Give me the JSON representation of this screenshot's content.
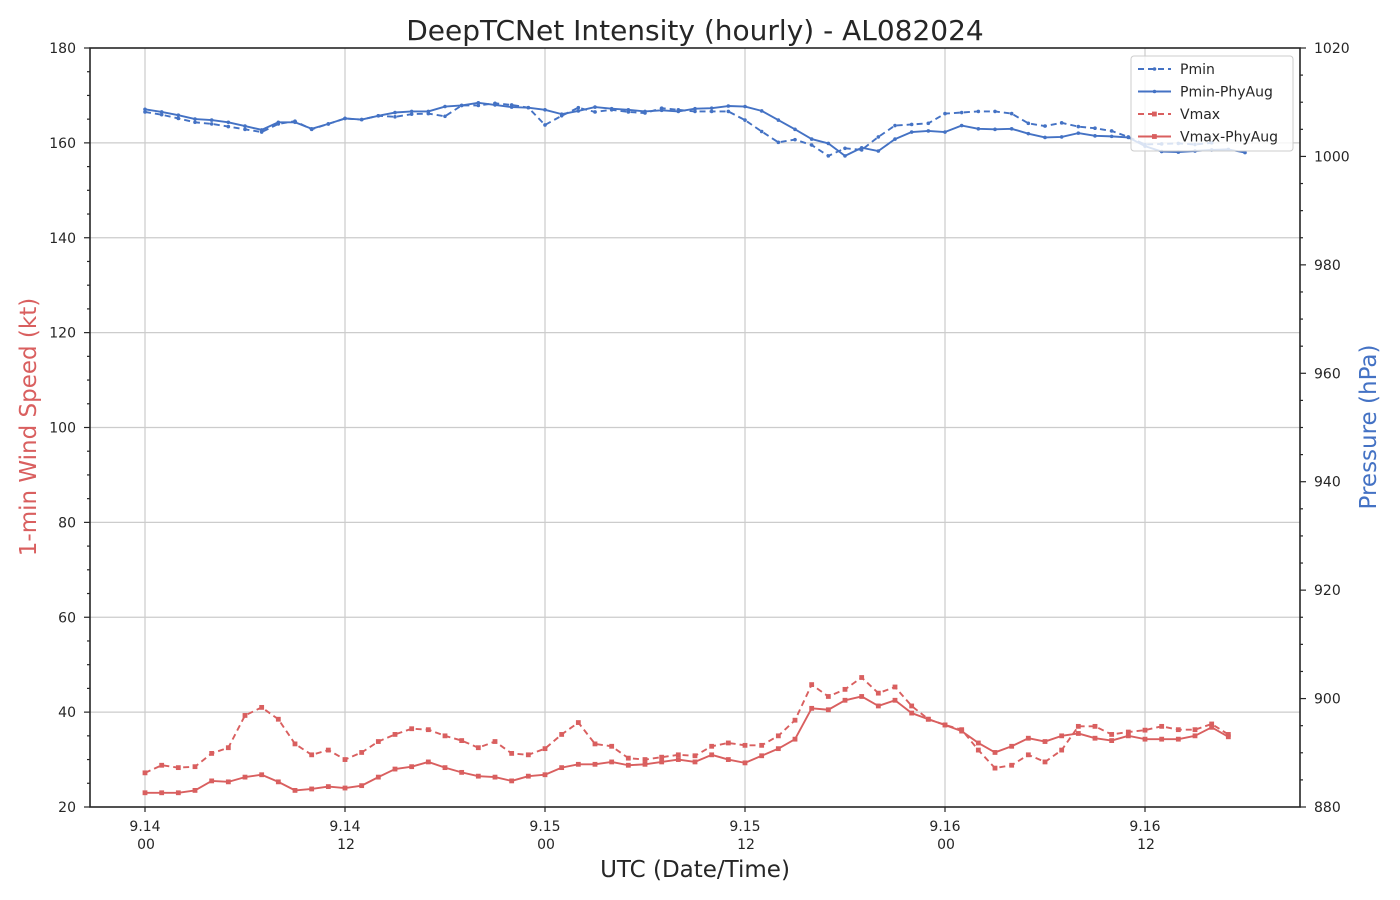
{
  "chart_data": {
    "type": "line",
    "title": "DeepTCNet Intensity (hourly) - AL082024",
    "xlabel": "UTC (Date/Time)",
    "ylabel_left": "1-min Wind Speed (kt)",
    "ylabel_right": "Pressure (hPa)",
    "ylim_left": [
      20,
      180
    ],
    "ylim_right": [
      880,
      1020
    ],
    "left_ticks": [
      20,
      40,
      60,
      80,
      100,
      120,
      140,
      160,
      180
    ],
    "right_ticks": [
      880,
      900,
      920,
      940,
      960,
      980,
      1000,
      1020
    ],
    "x_hours_range": [
      -3.3,
      69.3
    ],
    "x_ticks": [
      {
        "hour": 0,
        "date": "9.14",
        "time": "00"
      },
      {
        "hour": 12,
        "date": "9.14",
        "time": "12"
      },
      {
        "hour": 24,
        "date": "9.15",
        "time": "00"
      },
      {
        "hour": 36,
        "date": "9.15",
        "time": "12"
      },
      {
        "hour": 48,
        "date": "9.16",
        "time": "00"
      },
      {
        "hour": 60,
        "date": "9.16",
        "time": "12"
      }
    ],
    "grid": true,
    "legend_position": "top-right",
    "series": [
      {
        "name": "Pmin",
        "axis": "right",
        "color": "#4472c4",
        "dash": "6,4",
        "marker": "dot",
        "values": [
          1008.2,
          1007.7,
          1007,
          1006.3,
          1006,
          1005.5,
          1005,
          1004.5,
          1006,
          1006.5,
          1005,
          1006,
          1007,
          1006.8,
          1007.5,
          1007.3,
          1007.8,
          1007.9,
          1007.4,
          1009.4,
          1009.4,
          1009.8,
          1009.5,
          1009,
          1005.8,
          1007.5,
          1009,
          1008.2,
          1008.6,
          1008.2,
          1008,
          1008.9,
          1008.6,
          1008.3,
          1008.3,
          1008.3,
          1006.7,
          1004.6,
          1002.6,
          1003.1,
          1002.1,
          1000.1,
          1001.5,
          1001.2,
          1003.6,
          1005.7,
          1005.9,
          1006.1,
          1007.9,
          1008.1,
          1008.3,
          1008.3,
          1007.9,
          1006.1,
          1005.6,
          1006.2,
          1005.5,
          1005.2,
          1004.7,
          1003.6,
          1002.2,
          1002.3,
          1002.4,
          1002.2,
          1002.5
        ]
      },
      {
        "name": "Pmin-PhyAug",
        "axis": "right",
        "color": "#4472c4",
        "dash": "",
        "marker": "dot",
        "values": [
          1008.7,
          1008.2,
          1007.6,
          1006.9,
          1006.7,
          1006.3,
          1005.6,
          1004.9,
          1006.3,
          1006.3,
          1005.1,
          1006,
          1007,
          1006.8,
          1007.5,
          1008.1,
          1008.3,
          1008.3,
          1009.2,
          1009.4,
          1009.9,
          1009.5,
          1009.1,
          1009,
          1008.6,
          1007.8,
          1008.4,
          1009.1,
          1008.8,
          1008.6,
          1008.3,
          1008.5,
          1008.3,
          1008.8,
          1008.9,
          1009.3,
          1009.2,
          1008.4,
          1006.7,
          1005,
          1003.2,
          1002.4,
          1000.1,
          1001.6,
          1001,
          1003.2,
          1004.5,
          1004.7,
          1004.5,
          1005.7,
          1005.1,
          1005,
          1005.1,
          1004.2,
          1003.5,
          1003.6,
          1004.3,
          1003.8,
          1003.7,
          1003.5,
          1001.9,
          1000.9,
          1000.8,
          1001,
          1001.2,
          1001.3,
          1000.7
        ]
      },
      {
        "name": "Vmax",
        "axis": "left",
        "color": "#d95f5f",
        "dash": "6,4",
        "marker": "square",
        "values": [
          27.2,
          28.8,
          28.3,
          28.5,
          31.3,
          32.5,
          39.3,
          41,
          38.5,
          33.3,
          31,
          32,
          30,
          31.5,
          33.8,
          35.3,
          36.5,
          36.3,
          35,
          34,
          32.5,
          33.8,
          31.3,
          31,
          32.3,
          35.3,
          37.8,
          33.3,
          32.8,
          30.3,
          30,
          30.5,
          31,
          30.8,
          32.8,
          33.5,
          33,
          33,
          35,
          38.3,
          45.8,
          43.3,
          44.8,
          47.3,
          44,
          45.3,
          41.3,
          38.5,
          37.3,
          36.3,
          32,
          28.2,
          28.8,
          31,
          29.5,
          32,
          37,
          37,
          35.3,
          35.8,
          36.2,
          37,
          36.3,
          36.3,
          37.5,
          35.3
        ]
      },
      {
        "name": "Vmax-PhyAug",
        "axis": "left",
        "color": "#d95f5f",
        "dash": "",
        "marker": "square",
        "values": [
          23,
          23,
          23,
          23.5,
          25.5,
          25.3,
          26.3,
          26.8,
          25.3,
          23.5,
          23.8,
          24.3,
          24,
          24.5,
          26.3,
          28,
          28.5,
          29.5,
          28.3,
          27.3,
          26.5,
          26.3,
          25.5,
          26.5,
          26.8,
          28.3,
          29,
          29,
          29.5,
          28.8,
          29,
          29.5,
          30,
          29.5,
          31,
          30,
          29.3,
          30.8,
          32.3,
          34.3,
          40.8,
          40.5,
          42.5,
          43.3,
          41.3,
          42.5,
          39.8,
          38.5,
          37.3,
          36,
          33.5,
          31.5,
          32.8,
          34.5,
          33.8,
          35,
          35.5,
          34.5,
          34,
          35,
          34.3,
          34.3,
          34.3,
          35,
          36.8,
          34.8
        ]
      }
    ]
  }
}
